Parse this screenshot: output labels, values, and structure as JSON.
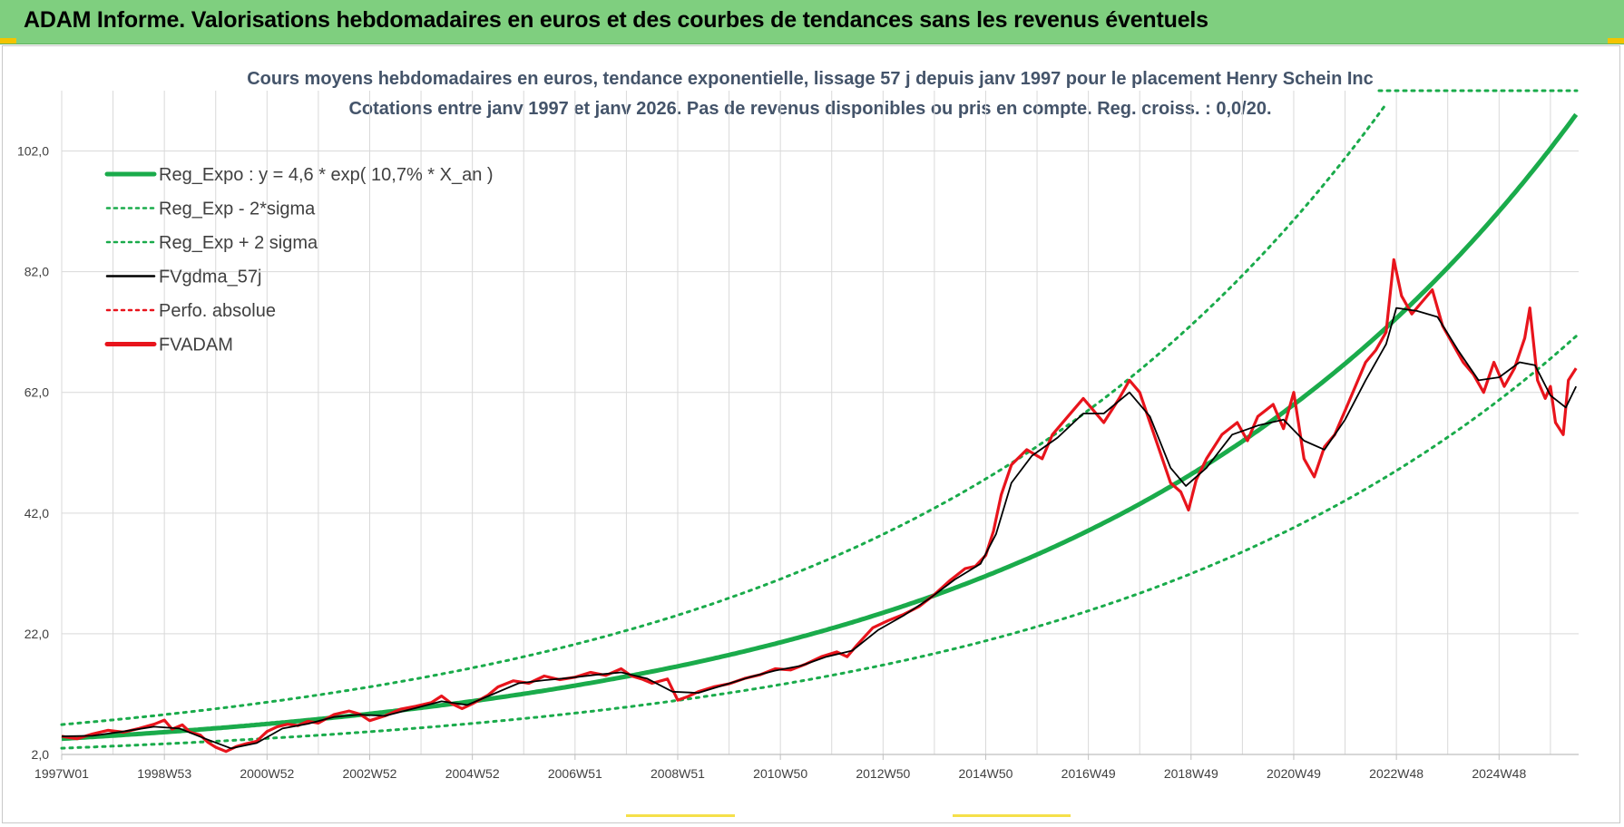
{
  "header": {
    "title": "ADAM Informe. Valorisations hebdomadaires en euros et des courbes de tendances sans les revenus éventuels"
  },
  "chart_data": {
    "type": "line",
    "title": "Cours moyens hebdomadaires en euros, tendance exponentielle, lissage 57 j depuis janv 1997 pour le placement Henry Schein Inc",
    "subtitle": "Cotations entre janv 1997 et janv 2026. Pas de revenus disponibles ou pris en compte. Reg. croiss. : 0,0/20.",
    "xlabel": "",
    "ylabel": "",
    "x_ticks": [
      "1997W01",
      "1998W53",
      "2000W52",
      "2002W52",
      "2004W52",
      "2006W51",
      "2008W51",
      "2010W50",
      "2012W50",
      "2014W50",
      "2016W49",
      "2018W49",
      "2020W49",
      "2022W48",
      "2024W48"
    ],
    "x_tick_years": [
      1997.0,
      1999.0,
      2001.0,
      2003.0,
      2005.0,
      2007.0,
      2009.0,
      2011.0,
      2013.0,
      2015.0,
      2017.0,
      2019.0,
      2021.0,
      2023.0,
      2025.0
    ],
    "x_range_years": [
      1997.0,
      2026.0
    ],
    "y_ticks": [
      "2,0",
      "22,0",
      "42,0",
      "62,0",
      "82,0",
      "102,0"
    ],
    "ylim": [
      2,
      112
    ],
    "grid": true,
    "legend_position": "top-left",
    "legend": [
      {
        "name": "Reg_Expo : y = 4,6 * exp( 10,7% *  X_an )",
        "color": "#1aab4b",
        "style": "solid-thick"
      },
      {
        "name": "Reg_Exp - 2*sigma",
        "color": "#1aab4b",
        "style": "dotted"
      },
      {
        "name": "Reg_Exp + 2 sigma",
        "color": "#1aab4b",
        "style": "dotted"
      },
      {
        "name": "FVgdma_57j",
        "color": "#000000",
        "style": "solid"
      },
      {
        "name": "Perfo. absolue",
        "color": "#e8141c",
        "style": "dotted"
      },
      {
        "name": "FVADAM",
        "color": "#e8141c",
        "style": "solid-thick"
      }
    ],
    "regression": {
      "a": 4.6,
      "rate": 0.107,
      "sigma_factor_upper": 1.51,
      "sigma_factor_lower": 0.66
    },
    "series": [
      {
        "name": "FVADAM",
        "color": "#e8141c",
        "points": [
          [
            1997.0,
            5.0
          ],
          [
            1997.3,
            4.6
          ],
          [
            1997.6,
            5.4
          ],
          [
            1997.9,
            6.0
          ],
          [
            1998.2,
            5.7
          ],
          [
            1998.5,
            6.3
          ],
          [
            1998.8,
            7.0
          ],
          [
            1999.0,
            7.7
          ],
          [
            1999.15,
            6.2
          ],
          [
            1999.35,
            6.9
          ],
          [
            1999.5,
            5.7
          ],
          [
            1999.7,
            5.2
          ],
          [
            1999.85,
            4.0
          ],
          [
            2000.0,
            3.2
          ],
          [
            2000.2,
            2.5
          ],
          [
            2000.4,
            3.3
          ],
          [
            2000.6,
            3.8
          ],
          [
            2000.8,
            4.2
          ],
          [
            2001.0,
            5.8
          ],
          [
            2001.2,
            6.6
          ],
          [
            2001.4,
            7.0
          ],
          [
            2001.6,
            6.8
          ],
          [
            2001.8,
            7.5
          ],
          [
            2002.0,
            7.2
          ],
          [
            2002.3,
            8.6
          ],
          [
            2002.6,
            9.2
          ],
          [
            2002.8,
            8.7
          ],
          [
            2003.0,
            7.6
          ],
          [
            2003.3,
            8.4
          ],
          [
            2003.6,
            9.5
          ],
          [
            2003.9,
            10.0
          ],
          [
            2004.2,
            10.6
          ],
          [
            2004.4,
            11.7
          ],
          [
            2004.6,
            10.4
          ],
          [
            2004.8,
            9.6
          ],
          [
            2005.0,
            10.4
          ],
          [
            2005.3,
            11.8
          ],
          [
            2005.5,
            13.2
          ],
          [
            2005.8,
            14.2
          ],
          [
            2006.1,
            13.8
          ],
          [
            2006.4,
            15.0
          ],
          [
            2006.7,
            14.4
          ],
          [
            2007.0,
            14.8
          ],
          [
            2007.3,
            15.6
          ],
          [
            2007.6,
            15.1
          ],
          [
            2007.9,
            16.2
          ],
          [
            2008.1,
            15.0
          ],
          [
            2008.3,
            14.5
          ],
          [
            2008.5,
            13.8
          ],
          [
            2008.8,
            14.5
          ],
          [
            2009.0,
            11.0
          ],
          [
            2009.2,
            11.6
          ],
          [
            2009.4,
            12.4
          ],
          [
            2009.7,
            13.2
          ],
          [
            2010.0,
            13.7
          ],
          [
            2010.3,
            14.6
          ],
          [
            2010.6,
            15.2
          ],
          [
            2010.9,
            16.2
          ],
          [
            2011.2,
            16.0
          ],
          [
            2011.5,
            17.0
          ],
          [
            2011.8,
            18.2
          ],
          [
            2012.1,
            19.0
          ],
          [
            2012.3,
            18.2
          ],
          [
            2012.5,
            20.2
          ],
          [
            2012.8,
            23.0
          ],
          [
            2013.1,
            24.2
          ],
          [
            2013.4,
            25.2
          ],
          [
            2013.7,
            26.5
          ],
          [
            2014.0,
            28.5
          ],
          [
            2014.3,
            30.8
          ],
          [
            2014.6,
            32.8
          ],
          [
            2014.8,
            33.2
          ],
          [
            2015.0,
            35.0
          ],
          [
            2015.15,
            39.0
          ],
          [
            2015.3,
            45.0
          ],
          [
            2015.5,
            50.0
          ],
          [
            2015.8,
            52.5
          ],
          [
            2016.1,
            51.0
          ],
          [
            2016.3,
            55.0
          ],
          [
            2016.6,
            58.0
          ],
          [
            2016.9,
            61.0
          ],
          [
            2017.1,
            59.0
          ],
          [
            2017.3,
            57.0
          ],
          [
            2017.6,
            61.0
          ],
          [
            2017.8,
            64.0
          ],
          [
            2018.0,
            62.0
          ],
          [
            2018.2,
            57.0
          ],
          [
            2018.4,
            52.0
          ],
          [
            2018.6,
            47.0
          ],
          [
            2018.8,
            45.5
          ],
          [
            2018.95,
            42.5
          ],
          [
            2019.1,
            47.5
          ],
          [
            2019.3,
            51.0
          ],
          [
            2019.6,
            55.0
          ],
          [
            2019.9,
            57.0
          ],
          [
            2020.1,
            54.0
          ],
          [
            2020.3,
            58.0
          ],
          [
            2020.6,
            60.0
          ],
          [
            2020.8,
            56.0
          ],
          [
            2021.0,
            62.0
          ],
          [
            2021.2,
            51.0
          ],
          [
            2021.4,
            48.0
          ],
          [
            2021.6,
            53.0
          ],
          [
            2021.8,
            55.0
          ],
          [
            2022.0,
            59.0
          ],
          [
            2022.2,
            63.0
          ],
          [
            2022.4,
            67.0
          ],
          [
            2022.6,
            69.0
          ],
          [
            2022.8,
            72.0
          ],
          [
            2022.95,
            84.0
          ],
          [
            2023.1,
            78.0
          ],
          [
            2023.3,
            75.0
          ],
          [
            2023.5,
            77.0
          ],
          [
            2023.7,
            79.0
          ],
          [
            2023.9,
            73.0
          ],
          [
            2024.1,
            70.0
          ],
          [
            2024.3,
            67.0
          ],
          [
            2024.5,
            65.0
          ],
          [
            2024.7,
            62.0
          ],
          [
            2024.9,
            67.0
          ],
          [
            2025.1,
            63.0
          ],
          [
            2025.3,
            66.0
          ],
          [
            2025.5,
            71.0
          ],
          [
            2025.6,
            76.0
          ],
          [
            2025.75,
            64.0
          ],
          [
            2025.9,
            61.0
          ],
          [
            2026.0,
            63.0
          ],
          [
            2026.1,
            57.0
          ],
          [
            2026.25,
            55.0
          ],
          [
            2026.35,
            64.0
          ],
          [
            2026.5,
            66.0
          ]
        ]
      },
      {
        "name": "FVgdma_57j",
        "color": "#000000",
        "points": [
          [
            1997.0,
            5.0
          ],
          [
            1997.6,
            5.1
          ],
          [
            1998.2,
            5.8
          ],
          [
            1998.8,
            6.6
          ],
          [
            1999.3,
            6.3
          ],
          [
            1999.8,
            4.6
          ],
          [
            2000.3,
            3.0
          ],
          [
            2000.8,
            3.9
          ],
          [
            2001.3,
            6.3
          ],
          [
            2001.8,
            7.1
          ],
          [
            2002.3,
            8.2
          ],
          [
            2002.8,
            8.6
          ],
          [
            2003.3,
            8.4
          ],
          [
            2003.9,
            9.7
          ],
          [
            2004.4,
            10.8
          ],
          [
            2004.9,
            10.2
          ],
          [
            2005.4,
            12.0
          ],
          [
            2005.9,
            13.8
          ],
          [
            2006.4,
            14.3
          ],
          [
            2006.9,
            14.7
          ],
          [
            2007.4,
            15.2
          ],
          [
            2007.9,
            15.6
          ],
          [
            2008.4,
            14.6
          ],
          [
            2008.9,
            12.4
          ],
          [
            2009.4,
            12.2
          ],
          [
            2009.9,
            13.5
          ],
          [
            2010.4,
            14.8
          ],
          [
            2010.9,
            15.9
          ],
          [
            2011.4,
            16.7
          ],
          [
            2011.9,
            18.2
          ],
          [
            2012.4,
            19.2
          ],
          [
            2012.9,
            22.6
          ],
          [
            2013.4,
            25.0
          ],
          [
            2013.9,
            27.8
          ],
          [
            2014.4,
            31.0
          ],
          [
            2014.9,
            33.6
          ],
          [
            2015.2,
            38.5
          ],
          [
            2015.5,
            47.0
          ],
          [
            2015.9,
            51.5
          ],
          [
            2016.4,
            54.5
          ],
          [
            2016.9,
            58.5
          ],
          [
            2017.3,
            58.5
          ],
          [
            2017.8,
            62.0
          ],
          [
            2018.2,
            58.0
          ],
          [
            2018.6,
            49.5
          ],
          [
            2018.9,
            46.5
          ],
          [
            2019.3,
            49.5
          ],
          [
            2019.8,
            55.0
          ],
          [
            2020.3,
            56.5
          ],
          [
            2020.8,
            57.5
          ],
          [
            2021.2,
            54.0
          ],
          [
            2021.6,
            52.5
          ],
          [
            2022.0,
            57.5
          ],
          [
            2022.4,
            64.0
          ],
          [
            2022.8,
            70.0
          ],
          [
            2023.0,
            76.0
          ],
          [
            2023.4,
            75.5
          ],
          [
            2023.8,
            74.5
          ],
          [
            2024.2,
            69.0
          ],
          [
            2024.6,
            64.0
          ],
          [
            2025.0,
            64.5
          ],
          [
            2025.4,
            67.0
          ],
          [
            2025.7,
            66.5
          ],
          [
            2026.0,
            61.5
          ],
          [
            2026.3,
            59.5
          ],
          [
            2026.5,
            63.0
          ]
        ]
      }
    ]
  }
}
